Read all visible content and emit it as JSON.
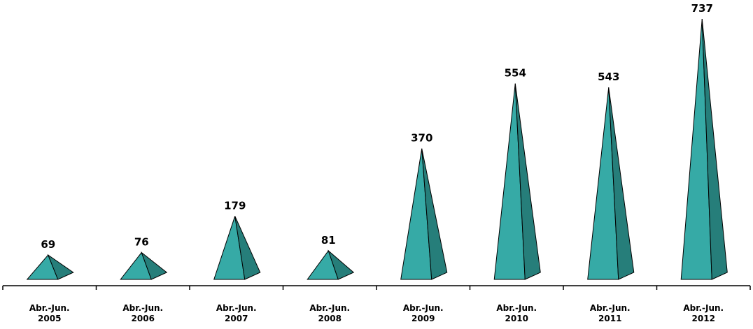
{
  "chart_data": {
    "type": "bar",
    "style": "pyramid",
    "categories": [
      [
        "Abr.-Jun.",
        "2005"
      ],
      [
        "Abr.-Jun.",
        "2006"
      ],
      [
        "Abr.-Jun.",
        "2007"
      ],
      [
        "Abr.-Jun.",
        "2008"
      ],
      [
        "Abr.-Jun.",
        "2009"
      ],
      [
        "Abr.-Jun.",
        "2010"
      ],
      [
        "Abr.-Jun.",
        "2011"
      ],
      [
        "Abr.-Jun.",
        "2012"
      ]
    ],
    "values": [
      69,
      76,
      179,
      81,
      370,
      554,
      543,
      737
    ],
    "data_labels": [
      "69",
      "76",
      "179",
      "81",
      "370",
      "554",
      "543",
      "737"
    ],
    "ylim": [
      0,
      737
    ],
    "grid": false,
    "legend": "none",
    "colors": {
      "front_face": "#36aaa6",
      "side_face": "#267e7a",
      "outline": "#000000",
      "axis": "#000000"
    }
  }
}
